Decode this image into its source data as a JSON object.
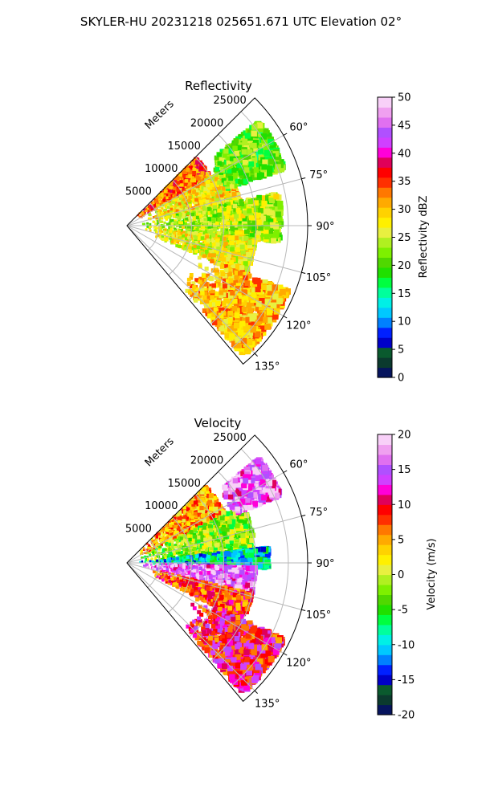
{
  "figure_title": "SKYLER-HU  20231218  025651.671 UTC Elevation 02°",
  "range_axis_label": "Meters",
  "range_ticks": [
    5000,
    10000,
    15000,
    20000,
    25000
  ],
  "angle_ticks": [
    60,
    75,
    90,
    105,
    120,
    135
  ],
  "sector": {
    "azimuth_min_deg": 45,
    "azimuth_max_deg": 140,
    "max_range_m": 28000
  },
  "chart_data": [
    {
      "type": "heatmap",
      "projection": "polar-sector",
      "title": "Reflectivity",
      "colorbar": {
        "label": "Reflectivity dBZ",
        "range": [
          0,
          50
        ],
        "ticks": [
          0,
          5,
          10,
          15,
          20,
          25,
          30,
          35,
          40,
          45,
          50
        ],
        "colors": [
          "#06145e",
          "#0b3a2e",
          "#0a5a2e",
          "#0000c8",
          "#0020ff",
          "#0080ff",
          "#00c8ff",
          "#00f0e6",
          "#00ff9c",
          "#00ff40",
          "#20e000",
          "#50d800",
          "#7ef000",
          "#b0f020",
          "#e8f040",
          "#fff000",
          "#ffd200",
          "#ffaa00",
          "#ff7800",
          "#ff3000",
          "#ff0000",
          "#e0005a",
          "#ff00d8",
          "#d040ff",
          "#b050ff",
          "#e070f0",
          "#f0a0f0",
          "#f8d0f8"
        ]
      },
      "field_regions": [
        {
          "az": [
            46,
            60
          ],
          "range_km": [
            2,
            15
          ],
          "dbz": 34
        },
        {
          "az": [
            60,
            80
          ],
          "range_km": [
            3,
            18
          ],
          "dbz": 28
        },
        {
          "az": [
            78,
            96
          ],
          "range_km": [
            2,
            24
          ],
          "dbz": 24
        },
        {
          "az": [
            96,
            112
          ],
          "range_km": [
            3,
            20
          ],
          "dbz": 27
        },
        {
          "az": [
            112,
            138
          ],
          "range_km": [
            12,
            27
          ],
          "dbz": 30
        },
        {
          "az": [
            52,
            70
          ],
          "range_km": [
            16,
            26
          ],
          "dbz": 21
        }
      ]
    },
    {
      "type": "heatmap",
      "projection": "polar-sector",
      "title": "Velocity",
      "colorbar": {
        "label": "Velocity (m/s)",
        "range": [
          -20,
          20
        ],
        "ticks": [
          -20,
          -15,
          -10,
          -5,
          0,
          5,
          10,
          15,
          20
        ],
        "colors": [
          "#06145e",
          "#0b3a2e",
          "#0a5a2e",
          "#0000c8",
          "#0020ff",
          "#0080ff",
          "#00c8ff",
          "#00f0e6",
          "#00ff9c",
          "#00ff40",
          "#20e000",
          "#50d800",
          "#7ef000",
          "#b0f020",
          "#e8f040",
          "#fff000",
          "#ffd200",
          "#ffaa00",
          "#ff7800",
          "#ff3000",
          "#ff0000",
          "#e0005a",
          "#ff00d8",
          "#d040ff",
          "#b050ff",
          "#e070f0",
          "#f0a0f0",
          "#f8d0f8"
        ]
      },
      "field_regions": [
        {
          "az": [
            46,
            64
          ],
          "range_km": [
            2,
            17
          ],
          "vel": 5
        },
        {
          "az": [
            64,
            84
          ],
          "range_km": [
            2,
            20
          ],
          "vel": -2
        },
        {
          "az": [
            84,
            92
          ],
          "range_km": [
            2,
            22
          ],
          "vel": -10
        },
        {
          "az": [
            92,
            104
          ],
          "range_km": [
            2,
            20
          ],
          "vel": 16
        },
        {
          "az": [
            104,
            116
          ],
          "range_km": [
            4,
            20
          ],
          "vel": 8
        },
        {
          "az": [
            116,
            138
          ],
          "range_km": [
            12,
            27
          ],
          "vel": 10
        },
        {
          "az": [
            52,
            66
          ],
          "range_km": [
            18,
            26
          ],
          "vel": 16
        }
      ]
    }
  ]
}
